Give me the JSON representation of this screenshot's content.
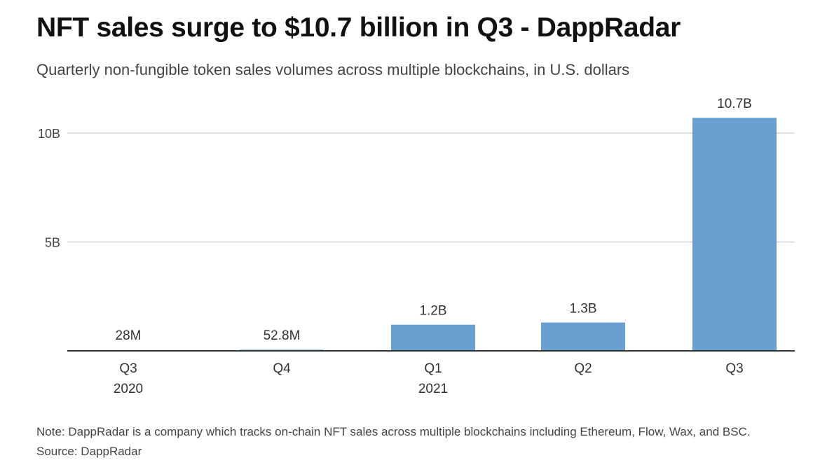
{
  "header": {
    "title": "NFT sales surge to $10.7 billion in Q3 - DappRadar",
    "subtitle": "Quarterly non-fungible token sales volumes across multiple blockchains, in U.S. dollars"
  },
  "footer": {
    "note": "Note: DappRadar is a company which tracks on-chain NFT sales across multiple blockchains including Ethereum, Flow, Wax, and BSC.",
    "source": "Source: DappRadar"
  },
  "chart_data": {
    "type": "bar",
    "categories": [
      "Q3",
      "Q4",
      "Q1",
      "Q2",
      "Q3"
    ],
    "category_years": [
      "2020",
      "",
      "2021",
      "",
      ""
    ],
    "values": [
      0.028,
      0.0528,
      1.2,
      1.3,
      10.7
    ],
    "value_labels": [
      "28M",
      "52.8M",
      "1.2B",
      "1.3B",
      "10.7B"
    ],
    "ylim": [
      0,
      10.7
    ],
    "yticks": [
      5,
      10
    ],
    "ytick_labels": [
      "5B",
      "10B"
    ],
    "grid": true,
    "bar_color": "#6a9fd2",
    "grid_color": "#d6d6d6",
    "axis_color": "#333333"
  }
}
